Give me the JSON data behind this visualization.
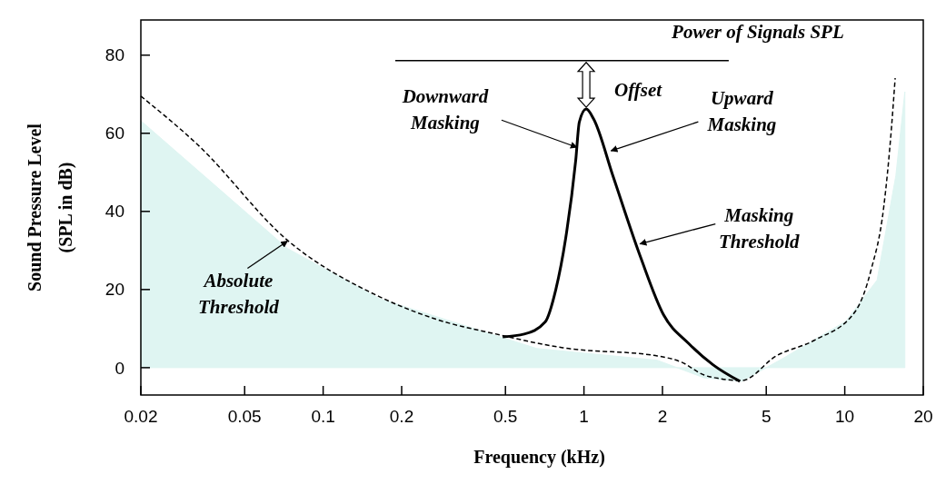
{
  "chart_data": {
    "type": "line",
    "xlabel": "Frequency (kHz)",
    "ylabel": "Sound Pressure Level\n(SPL in dB)",
    "log": "x",
    "xlim": [
      0.02,
      20
    ],
    "xticks": [
      0.02,
      0.05,
      0.1,
      0.2,
      0.5,
      1,
      2,
      5,
      10,
      20
    ],
    "ylim": [
      -7,
      89
    ],
    "yticks": [
      0,
      20,
      40,
      60,
      80
    ],
    "series": [
      {
        "type": "area",
        "color": "#dff5f2",
        "x": [
          0.02,
          0.073,
          0.164,
          0.66,
          1.91,
          2.89,
          4.02,
          5.77,
          10.1,
          13.3,
          15.7,
          17.0
        ],
        "values": [
          63.2,
          30.5,
          17.7,
          4.9,
          1.9,
          -2.6,
          -3.5,
          2.3,
          11.9,
          22.4,
          49.2,
          70.6
        ]
      },
      {
        "line_style": "dashed",
        "color": "#000000",
        "x": [
          0.02,
          0.033,
          0.073,
          0.164,
          0.271,
          0.475,
          0.66,
          0.83,
          1.91,
          2.37,
          2.89,
          3.32,
          4.02,
          5.46,
          7.64,
          11.0,
          12.6,
          14.1,
          15.1,
          15.6
        ],
        "values": [
          69.5,
          57.1,
          32.6,
          18.2,
          12.4,
          8.4,
          6.3,
          5.1,
          3.0,
          1.4,
          -1.9,
          -2.8,
          -3.3,
          3.0,
          7.0,
          14.5,
          24.9,
          41,
          61.3,
          74.1
        ]
      },
      {
        "line_style": "solid",
        "color": "#000000",
        "x": [
          0.488,
          0.59,
          0.71,
          0.78,
          0.85,
          0.93,
          0.96,
          1.02,
          1.09,
          1.29,
          1.65,
          2.02,
          2.51,
          3.13,
          3.96
        ],
        "values": [
          7.9,
          8.6,
          11.7,
          20.0,
          32.9,
          53.1,
          62.9,
          66.2,
          63.6,
          49.2,
          28.2,
          13.5,
          6.3,
          0.7,
          -3.5
        ]
      },
      {
        "line_style": "solid",
        "color": "#000000",
        "x": [
          0.189,
          3.59
        ],
        "values": [
          78.6,
          78.6
        ]
      }
    ],
    "annotations": [
      {
        "text": "Power of Signals SPL",
        "x": 3.59,
        "y": 78.6
      },
      "Offset",
      {
        "text": "Downward\nMasking",
        "x": 0.94,
        "y": 56.4
      },
      {
        "text": "Upward\nMasking",
        "x": 1.27,
        "y": 55.5
      },
      {
        "text": "Masking\nThreshold",
        "x": 1.64,
        "y": 31.7
      },
      {
        "text": "Absolute\nThreshold",
        "x": 0.073,
        "y": 32.4
      }
    ]
  }
}
